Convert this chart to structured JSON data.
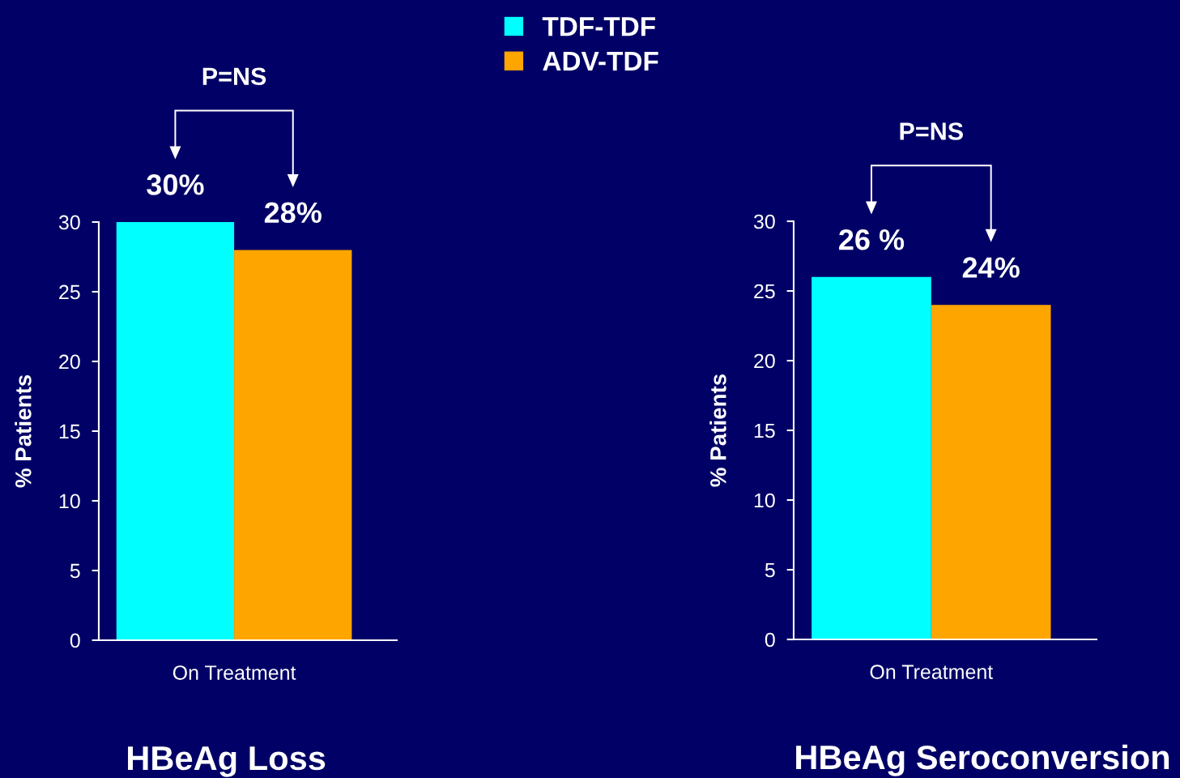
{
  "chart_data": [
    {
      "type": "bar",
      "title": "HBeAg Loss",
      "ylabel": "% Patients",
      "categories": [
        "On Treatment"
      ],
      "series": [
        {
          "name": "TDF-TDF",
          "color": "#00ffff",
          "values": [
            30
          ],
          "value_labels": [
            "30%"
          ]
        },
        {
          "name": "ADV-TDF",
          "color": "#ffa500",
          "values": [
            28
          ],
          "value_labels": [
            "28%"
          ]
        }
      ],
      "ylim": [
        0,
        30
      ],
      "yticks": [
        0,
        5,
        10,
        15,
        20,
        25,
        30
      ],
      "legend": "top",
      "annotations": [
        "P=NS"
      ]
    },
    {
      "type": "bar",
      "title": "HBeAg Seroconversion",
      "ylabel": "% Patients",
      "categories": [
        "On Treatment"
      ],
      "series": [
        {
          "color": "#00ffff",
          "values": [
            26
          ],
          "value_labels": [
            "26 %"
          ]
        },
        {
          "color": "#ffa500",
          "values": [
            24
          ],
          "value_labels": [
            "24%"
          ]
        }
      ],
      "ylim": [
        0,
        30
      ],
      "yticks": [
        0,
        5,
        10,
        15,
        20,
        25,
        30
      ],
      "annotations": [
        "P=NS"
      ]
    }
  ]
}
